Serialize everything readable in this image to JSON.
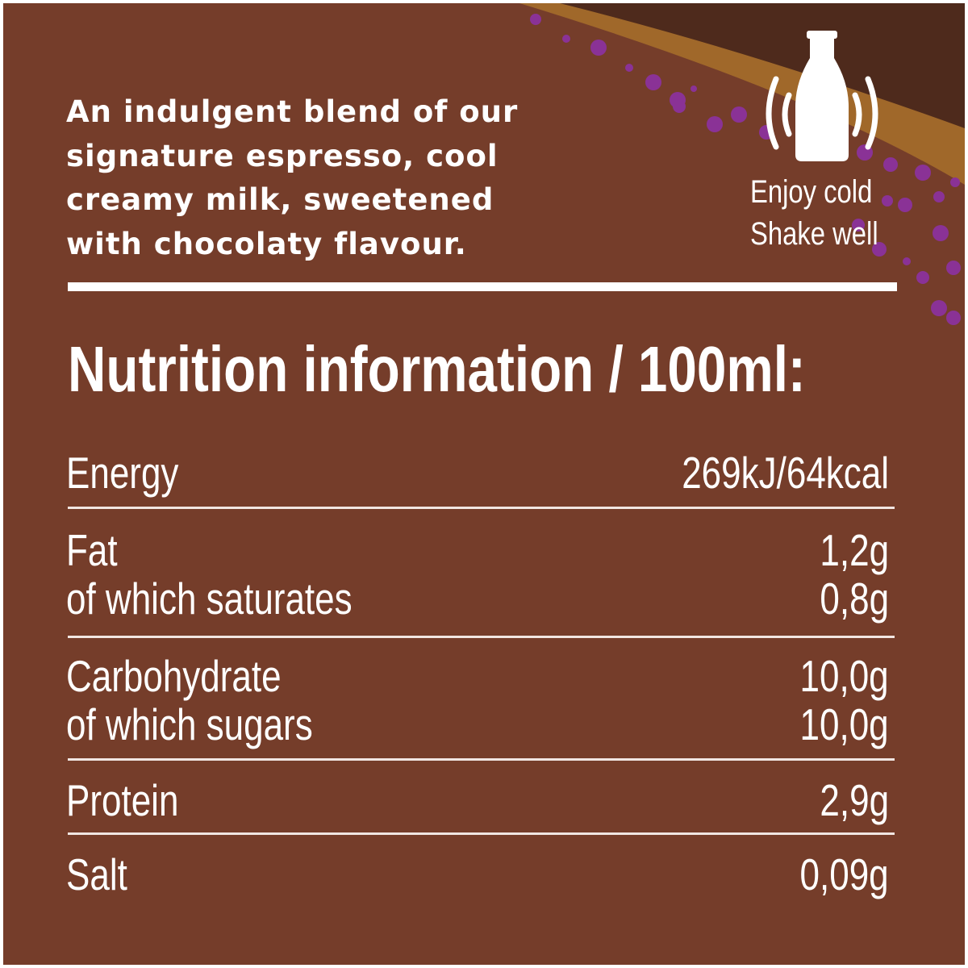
{
  "colors": {
    "background": "#753d2a",
    "dark_band": "#4e2a1c",
    "gold_band": "#a0682a",
    "bubbles": "#8a3296",
    "text": "#ffffff"
  },
  "description": [
    "An indulgent blend of our",
    "signature espresso, cool",
    "creamy milk, sweetened",
    "with chocolaty flavour."
  ],
  "icon": "shaking-bottle-icon",
  "hints": [
    "Enjoy cold",
    "Shake well"
  ],
  "nutrition": {
    "title": "Nutrition information / 100ml:",
    "rows": [
      {
        "label": "Energy",
        "value": "269kJ/64kcal"
      },
      {
        "label": "Fat",
        "value": "1,2g"
      },
      {
        "label": "of which saturates",
        "value": "0,8g"
      },
      {
        "label": "Carbohydrate",
        "value": "10,0g"
      },
      {
        "label": "of which sugars",
        "value": "10,0g"
      },
      {
        "label": "Protein",
        "value": "2,9g"
      },
      {
        "label": "Salt",
        "value": "0,09g"
      }
    ]
  }
}
